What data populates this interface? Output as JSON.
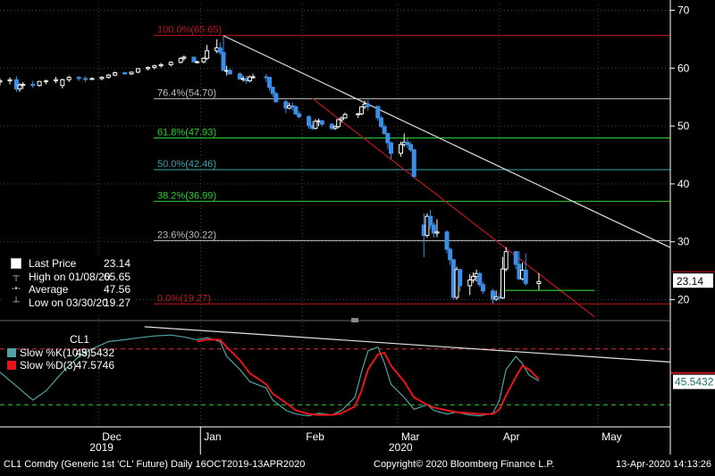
{
  "header": {
    "symbol": "CL1"
  },
  "price_legend": [
    {
      "icon": "last-price-marker",
      "label": "Last Price",
      "value": "23.14"
    },
    {
      "icon": "high-marker",
      "label": "High on 01/08/20",
      "value": "65.65"
    },
    {
      "icon": "average-marker",
      "label": "Average",
      "value": "47.56"
    },
    {
      "icon": "low-marker",
      "label": "Low on 03/30/20",
      "value": "19.27"
    }
  ],
  "osc_legend": {
    "title": "CL1",
    "k": {
      "label": "Slow %K(10,3)",
      "value": "45.5432",
      "color": "#4fa3a5"
    },
    "d": {
      "label": "Slow %D(3)",
      "value": "47.5746",
      "color": "#e8161b"
    }
  },
  "last_price_tag": "23.14",
  "osc_tag": "45.5432",
  "footer": {
    "left": "CL1 Comdty (Generic 1st 'CL' Future)  Daily 16OCT2019-13APR2020",
    "center": "Copyright© 2020 Bloomberg Finance L.P.",
    "right": "13-Apr-2020 14:13:26"
  },
  "colors": {
    "up": "#ffffff",
    "down": "#3b8fe8",
    "bg": "#000000"
  },
  "chart_data": {
    "type": "candlestick",
    "price_axis": {
      "ticks": [
        20,
        30,
        40,
        50,
        60,
        70
      ],
      "range": [
        17,
        71
      ]
    },
    "x_axis": {
      "range": [
        "2019-11-01",
        "2020-05-23"
      ],
      "months": [
        {
          "label": "Dec",
          "date": "2019-12-01"
        },
        {
          "label": "Jan",
          "date": "2020-01-01"
        },
        {
          "label": "Feb",
          "date": "2020-02-01"
        },
        {
          "label": "Mar",
          "date": "2020-03-01"
        },
        {
          "label": "Apr",
          "date": "2020-04-01"
        },
        {
          "label": "May",
          "date": "2020-05-01"
        }
      ],
      "years": [
        {
          "label": "2019",
          "date": "2019-12-01"
        },
        {
          "label": "2020",
          "date": "2020-03-01"
        }
      ],
      "year_divider": "2020-01-01"
    },
    "fib_levels": [
      {
        "label": "100.0%(65.65)",
        "value": 65.65,
        "color": "#c0161b"
      },
      {
        "label": "76.4%(54.70)",
        "value": 54.7,
        "color": "#bfbfbf"
      },
      {
        "label": "61.8%(47.93)",
        "value": 47.93,
        "color": "#2fd12f"
      },
      {
        "label": "50.0%(42.46)",
        "value": 42.46,
        "color": "#3aa7b3"
      },
      {
        "label": "38.2%(36.99)",
        "value": 36.99,
        "color": "#2fd12f"
      },
      {
        "label": "23.6%(30.22)",
        "value": 30.22,
        "color": "#bfbfbf"
      },
      {
        "label": "0.0%(19.27)",
        "value": 19.27,
        "color": "#c0161b"
      }
    ],
    "trendlines": [
      {
        "color": "#e0e0e0",
        "from": [
          "2020-01-08",
          65.6
        ],
        "to": [
          "2020-05-23",
          29.0
        ]
      },
      {
        "color": "#c0161b",
        "from": [
          "2020-02-04",
          54.8
        ],
        "to": [
          "2020-04-30",
          17.0
        ]
      },
      {
        "color": "#2fd12f",
        "from": [
          "2020-04-01",
          21.6
        ],
        "to": [
          "2020-04-30",
          21.6
        ]
      }
    ],
    "ohlc": [
      [
        "2019-11-01",
        57.6,
        58.2,
        57.0,
        57.8
      ],
      [
        "2019-11-04",
        57.8,
        58.4,
        57.2,
        58.0
      ],
      [
        "2019-11-06",
        58.0,
        58.6,
        55.9,
        56.4
      ],
      [
        "2019-11-07",
        56.4,
        57.4,
        55.9,
        57.1
      ],
      [
        "2019-11-08",
        57.1,
        57.6,
        56.4,
        57.2
      ],
      [
        "2019-11-11",
        57.2,
        57.8,
        56.6,
        57.0
      ],
      [
        "2019-11-13",
        57.0,
        57.8,
        56.8,
        57.7
      ],
      [
        "2019-11-15",
        57.7,
        58.0,
        57.2,
        57.8
      ],
      [
        "2019-11-18",
        57.8,
        58.5,
        57.4,
        58.0
      ],
      [
        "2019-11-20",
        57.0,
        58.2,
        56.5,
        58.0
      ],
      [
        "2019-11-22",
        58.0,
        58.7,
        57.6,
        58.4
      ],
      [
        "2019-11-25",
        58.4,
        58.6,
        57.8,
        58.2
      ],
      [
        "2019-11-27",
        58.2,
        58.6,
        57.6,
        58.1
      ],
      [
        "2019-11-29",
        58.1,
        58.4,
        58.0,
        58.2
      ],
      [
        "2019-12-02",
        58.2,
        58.6,
        57.9,
        58.4
      ],
      [
        "2019-12-04",
        58.4,
        59.0,
        58.2,
        58.8
      ],
      [
        "2019-12-06",
        58.8,
        59.4,
        58.6,
        59.2
      ],
      [
        "2019-12-09",
        59.2,
        59.4,
        58.9,
        59.0
      ],
      [
        "2019-12-11",
        59.0,
        59.4,
        58.8,
        59.3
      ],
      [
        "2019-12-13",
        59.3,
        60.0,
        59.1,
        59.9
      ],
      [
        "2019-12-16",
        59.9,
        60.3,
        59.6,
        60.1
      ],
      [
        "2019-12-18",
        60.1,
        60.6,
        59.8,
        60.4
      ],
      [
        "2019-12-20",
        60.4,
        60.9,
        60.1,
        60.6
      ],
      [
        "2019-12-23",
        60.6,
        61.2,
        60.3,
        61.0
      ],
      [
        "2019-12-26",
        61.0,
        61.9,
        60.8,
        61.7
      ],
      [
        "2019-12-27",
        61.7,
        62.2,
        61.3,
        61.9
      ],
      [
        "2019-12-30",
        61.9,
        62.0,
        61.0,
        61.1
      ],
      [
        "2019-12-31",
        61.1,
        61.3,
        60.8,
        61.1
      ],
      [
        "2020-01-02",
        61.1,
        61.9,
        60.8,
        61.7
      ],
      [
        "2020-01-03",
        61.7,
        64.0,
        61.4,
        63.0
      ],
      [
        "2020-01-06",
        63.0,
        65.0,
        62.6,
        63.5
      ],
      [
        "2020-01-07",
        63.5,
        64.4,
        62.3,
        62.7
      ],
      [
        "2020-01-08",
        62.7,
        65.65,
        59.6,
        59.6
      ],
      [
        "2020-01-09",
        59.6,
        60.4,
        58.7,
        59.6
      ],
      [
        "2020-01-10",
        59.6,
        60.0,
        58.9,
        59.0
      ],
      [
        "2020-01-13",
        59.0,
        59.3,
        58.1,
        58.1
      ],
      [
        "2020-01-14",
        58.1,
        58.7,
        57.7,
        58.2
      ],
      [
        "2020-01-15",
        58.2,
        58.7,
        57.3,
        57.8
      ],
      [
        "2020-01-16",
        57.8,
        58.7,
        57.6,
        58.5
      ],
      [
        "2020-01-17",
        58.5,
        59.0,
        58.2,
        58.5
      ],
      [
        "2020-01-21",
        58.5,
        59.0,
        57.6,
        58.4
      ],
      [
        "2020-01-22",
        58.4,
        58.5,
        56.1,
        56.7
      ],
      [
        "2020-01-23",
        56.7,
        56.8,
        55.0,
        55.6
      ],
      [
        "2020-01-24",
        55.6,
        55.9,
        54.0,
        54.2
      ],
      [
        "2020-01-27",
        54.2,
        54.5,
        52.2,
        53.1
      ],
      [
        "2020-01-28",
        53.1,
        54.0,
        52.9,
        53.5
      ],
      [
        "2020-01-29",
        53.5,
        54.1,
        52.7,
        53.3
      ],
      [
        "2020-01-30",
        53.3,
        53.6,
        51.9,
        52.1
      ],
      [
        "2020-01-31",
        52.1,
        52.6,
        51.3,
        51.6
      ],
      [
        "2020-02-03",
        51.6,
        51.9,
        49.5,
        50.1
      ],
      [
        "2020-02-04",
        50.1,
        50.8,
        49.3,
        49.6
      ],
      [
        "2020-02-05",
        49.6,
        51.2,
        49.4,
        50.8
      ],
      [
        "2020-02-06",
        50.8,
        51.3,
        50.0,
        50.9
      ],
      [
        "2020-02-07",
        50.9,
        51.0,
        49.9,
        50.3
      ],
      [
        "2020-02-10",
        50.3,
        50.5,
        49.3,
        49.6
      ],
      [
        "2020-02-11",
        49.6,
        50.1,
        49.3,
        49.9
      ],
      [
        "2020-02-12",
        49.9,
        51.2,
        49.6,
        51.1
      ],
      [
        "2020-02-13",
        51.1,
        51.6,
        50.6,
        51.4
      ],
      [
        "2020-02-14",
        51.4,
        52.3,
        51.3,
        52.0
      ],
      [
        "2020-02-18",
        52.0,
        52.3,
        51.4,
        52.1
      ],
      [
        "2020-02-19",
        52.1,
        53.4,
        51.9,
        53.3
      ],
      [
        "2020-02-20",
        53.3,
        54.4,
        52.9,
        53.8
      ],
      [
        "2020-02-21",
        53.8,
        54.5,
        52.6,
        53.4
      ],
      [
        "2020-02-24",
        53.4,
        53.5,
        50.9,
        51.4
      ],
      [
        "2020-02-25",
        51.4,
        51.7,
        49.7,
        49.9
      ],
      [
        "2020-02-26",
        49.9,
        50.4,
        48.5,
        48.7
      ],
      [
        "2020-02-27",
        48.7,
        48.8,
        46.0,
        47.1
      ],
      [
        "2020-02-28",
        47.1,
        47.3,
        44.3,
        45.3
      ],
      [
        "2020-03-02",
        45.3,
        47.3,
        44.7,
        46.8
      ],
      [
        "2020-03-03",
        46.8,
        48.7,
        46.4,
        47.2
      ],
      [
        "2020-03-04",
        47.2,
        47.9,
        46.2,
        46.8
      ],
      [
        "2020-03-05",
        46.8,
        47.2,
        45.5,
        45.9
      ],
      [
        "2020-03-06",
        45.9,
        46.0,
        41.0,
        41.3
      ],
      [
        "2020-03-09",
        32.9,
        34.9,
        27.3,
        31.1
      ],
      [
        "2020-03-10",
        31.1,
        34.9,
        30.7,
        34.4
      ],
      [
        "2020-03-11",
        34.4,
        35.5,
        32.2,
        32.9
      ],
      [
        "2020-03-12",
        32.9,
        33.4,
        30.7,
        31.5
      ],
      [
        "2020-03-13",
        31.5,
        33.9,
        30.8,
        31.7
      ],
      [
        "2020-03-16",
        31.7,
        32.0,
        28.0,
        28.7
      ],
      [
        "2020-03-17",
        28.7,
        29.0,
        26.0,
        26.9
      ],
      [
        "2020-03-18",
        26.9,
        27.0,
        20.0,
        20.4
      ],
      [
        "2020-03-19",
        20.4,
        25.7,
        20.0,
        25.2
      ],
      [
        "2020-03-20",
        25.2,
        25.4,
        21.4,
        22.4
      ],
      [
        "2020-03-23",
        22.4,
        24.4,
        20.8,
        23.4
      ],
      [
        "2020-03-24",
        23.4,
        24.7,
        22.9,
        24.0
      ],
      [
        "2020-03-25",
        24.0,
        25.2,
        23.1,
        24.5
      ],
      [
        "2020-03-26",
        24.5,
        24.8,
        22.2,
        22.6
      ],
      [
        "2020-03-27",
        22.6,
        23.1,
        21.0,
        21.5
      ],
      [
        "2020-03-30",
        21.5,
        21.9,
        19.27,
        20.1
      ],
      [
        "2020-03-31",
        20.1,
        21.6,
        19.8,
        20.5
      ],
      [
        "2020-04-01",
        20.5,
        21.3,
        19.9,
        20.3
      ],
      [
        "2020-04-02",
        20.3,
        27.4,
        20.1,
        25.3
      ],
      [
        "2020-04-03",
        25.3,
        29.1,
        24.9,
        28.3
      ],
      [
        "2020-04-06",
        28.3,
        28.4,
        25.3,
        26.1
      ],
      [
        "2020-04-07",
        26.1,
        28.4,
        23.4,
        23.6
      ],
      [
        "2020-04-08",
        23.6,
        26.4,
        23.3,
        25.1
      ],
      [
        "2020-04-09",
        25.1,
        28.0,
        22.4,
        22.8
      ],
      [
        "2020-04-13",
        22.8,
        24.6,
        21.7,
        23.14
      ]
    ],
    "oscillator": {
      "levels": [
        {
          "value": 80,
          "color": "#d33",
          "dash": true
        },
        {
          "value": 20,
          "color": "#3c3",
          "dash": true
        }
      ],
      "range": [
        0,
        100
      ],
      "k": [
        [
          "2019-11-01",
          55
        ],
        [
          "2019-11-06",
          40
        ],
        [
          "2019-11-11",
          25
        ],
        [
          "2019-11-15",
          35
        ],
        [
          "2019-11-20",
          55
        ],
        [
          "2019-11-25",
          72
        ],
        [
          "2019-11-29",
          80
        ],
        [
          "2019-12-04",
          88
        ],
        [
          "2019-12-09",
          90
        ],
        [
          "2019-12-13",
          92
        ],
        [
          "2019-12-18",
          94
        ],
        [
          "2019-12-23",
          95
        ],
        [
          "2019-12-27",
          93
        ],
        [
          "2019-12-31",
          90
        ],
        [
          "2020-01-03",
          92
        ],
        [
          "2020-01-07",
          88
        ],
        [
          "2020-01-09",
          72
        ],
        [
          "2020-01-13",
          58
        ],
        [
          "2020-01-16",
          45
        ],
        [
          "2020-01-21",
          38
        ],
        [
          "2020-01-23",
          25
        ],
        [
          "2020-01-27",
          14
        ],
        [
          "2020-01-30",
          10
        ],
        [
          "2020-02-03",
          8
        ],
        [
          "2020-02-06",
          11
        ],
        [
          "2020-02-10",
          9
        ],
        [
          "2020-02-13",
          14
        ],
        [
          "2020-02-17",
          28
        ],
        [
          "2020-02-19",
          55
        ],
        [
          "2020-02-21",
          78
        ],
        [
          "2020-02-24",
          82
        ],
        [
          "2020-02-26",
          65
        ],
        [
          "2020-02-28",
          42
        ],
        [
          "2020-03-03",
          28
        ],
        [
          "2020-03-06",
          15
        ],
        [
          "2020-03-10",
          20
        ],
        [
          "2020-03-12",
          14
        ],
        [
          "2020-03-16",
          10
        ],
        [
          "2020-03-19",
          12
        ],
        [
          "2020-03-23",
          9
        ],
        [
          "2020-03-26",
          8
        ],
        [
          "2020-03-30",
          11
        ],
        [
          "2020-04-01",
          25
        ],
        [
          "2020-04-03",
          58
        ],
        [
          "2020-04-06",
          72
        ],
        [
          "2020-04-08",
          64
        ],
        [
          "2020-04-10",
          52
        ],
        [
          "2020-04-13",
          45.5432
        ]
      ],
      "d": [
        [
          "2019-12-31",
          88
        ],
        [
          "2020-01-03",
          90
        ],
        [
          "2020-01-07",
          90
        ],
        [
          "2020-01-09",
          82
        ],
        [
          "2020-01-13",
          68
        ],
        [
          "2020-01-16",
          54
        ],
        [
          "2020-01-21",
          42
        ],
        [
          "2020-01-23",
          32
        ],
        [
          "2020-01-27",
          22
        ],
        [
          "2020-01-30",
          14
        ],
        [
          "2020-02-03",
          10
        ],
        [
          "2020-02-06",
          9
        ],
        [
          "2020-02-10",
          9
        ],
        [
          "2020-02-13",
          11
        ],
        [
          "2020-02-17",
          18
        ],
        [
          "2020-02-19",
          35
        ],
        [
          "2020-02-21",
          58
        ],
        [
          "2020-02-24",
          74
        ],
        [
          "2020-02-26",
          76
        ],
        [
          "2020-02-28",
          62
        ],
        [
          "2020-03-03",
          45
        ],
        [
          "2020-03-06",
          28
        ],
        [
          "2020-03-10",
          20
        ],
        [
          "2020-03-12",
          17
        ],
        [
          "2020-03-16",
          14
        ],
        [
          "2020-03-19",
          12
        ],
        [
          "2020-03-23",
          11
        ],
        [
          "2020-03-26",
          10
        ],
        [
          "2020-03-30",
          10
        ],
        [
          "2020-04-01",
          15
        ],
        [
          "2020-04-03",
          30
        ],
        [
          "2020-04-06",
          50
        ],
        [
          "2020-04-08",
          62
        ],
        [
          "2020-04-10",
          58
        ],
        [
          "2020-04-13",
          47.5746
        ]
      ],
      "trendline": {
        "color": "#e0e0e0",
        "from": [
          "2019-12-15",
          104
        ],
        "to": [
          "2020-05-23",
          66
        ]
      }
    }
  }
}
